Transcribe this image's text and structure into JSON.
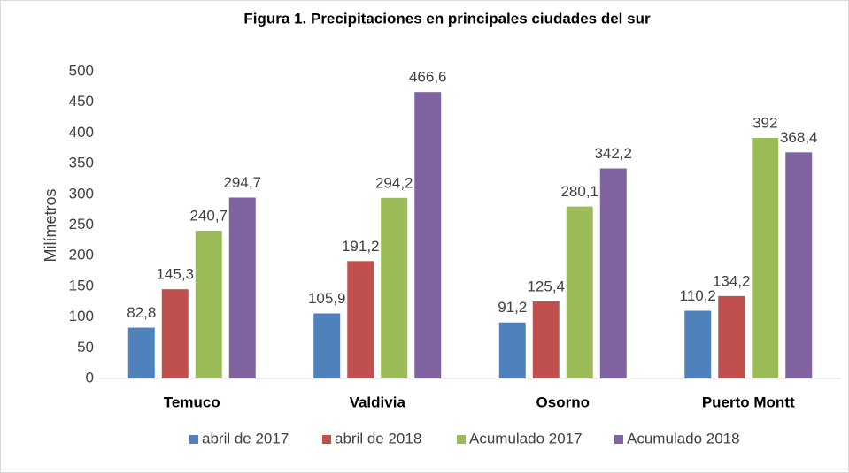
{
  "chart_data": {
    "type": "bar",
    "title": "Figura 1. Precipitaciones en principales ciudades del sur",
    "y_label": "Milímetros",
    "categories": [
      "Temuco",
      "Valdivia",
      "Osorno",
      "Puerto Montt"
    ],
    "series": [
      {
        "name": "abril de 2017",
        "color": "#4f81bd",
        "values": [
          82.8,
          105.9,
          91.2,
          110.2
        ],
        "value_labels": [
          "82,8",
          "105,9",
          "91,2",
          "110,2"
        ]
      },
      {
        "name": "abril de 2018",
        "color": "#c0504d",
        "values": [
          145.3,
          191.2,
          125.4,
          134.2
        ],
        "value_labels": [
          "145,3",
          "191,2",
          "125,4",
          "134,2"
        ]
      },
      {
        "name": "Acumulado 2017",
        "color": "#9bbb59",
        "values": [
          240.7,
          294.2,
          280.1,
          392
        ],
        "value_labels": [
          "240,7",
          "294,2",
          "280,1",
          "392"
        ]
      },
      {
        "name": "Acumulado 2018",
        "color": "#8064a2",
        "values": [
          294.7,
          466.6,
          342.2,
          368.4
        ],
        "value_labels": [
          "294,7",
          "466,6",
          "342,2",
          "368,4"
        ]
      }
    ],
    "ylim": [
      0,
      500
    ],
    "yticks": [
      0,
      50,
      100,
      150,
      200,
      250,
      300,
      350,
      400,
      450,
      500
    ],
    "grid": false,
    "legend": "bottom"
  }
}
